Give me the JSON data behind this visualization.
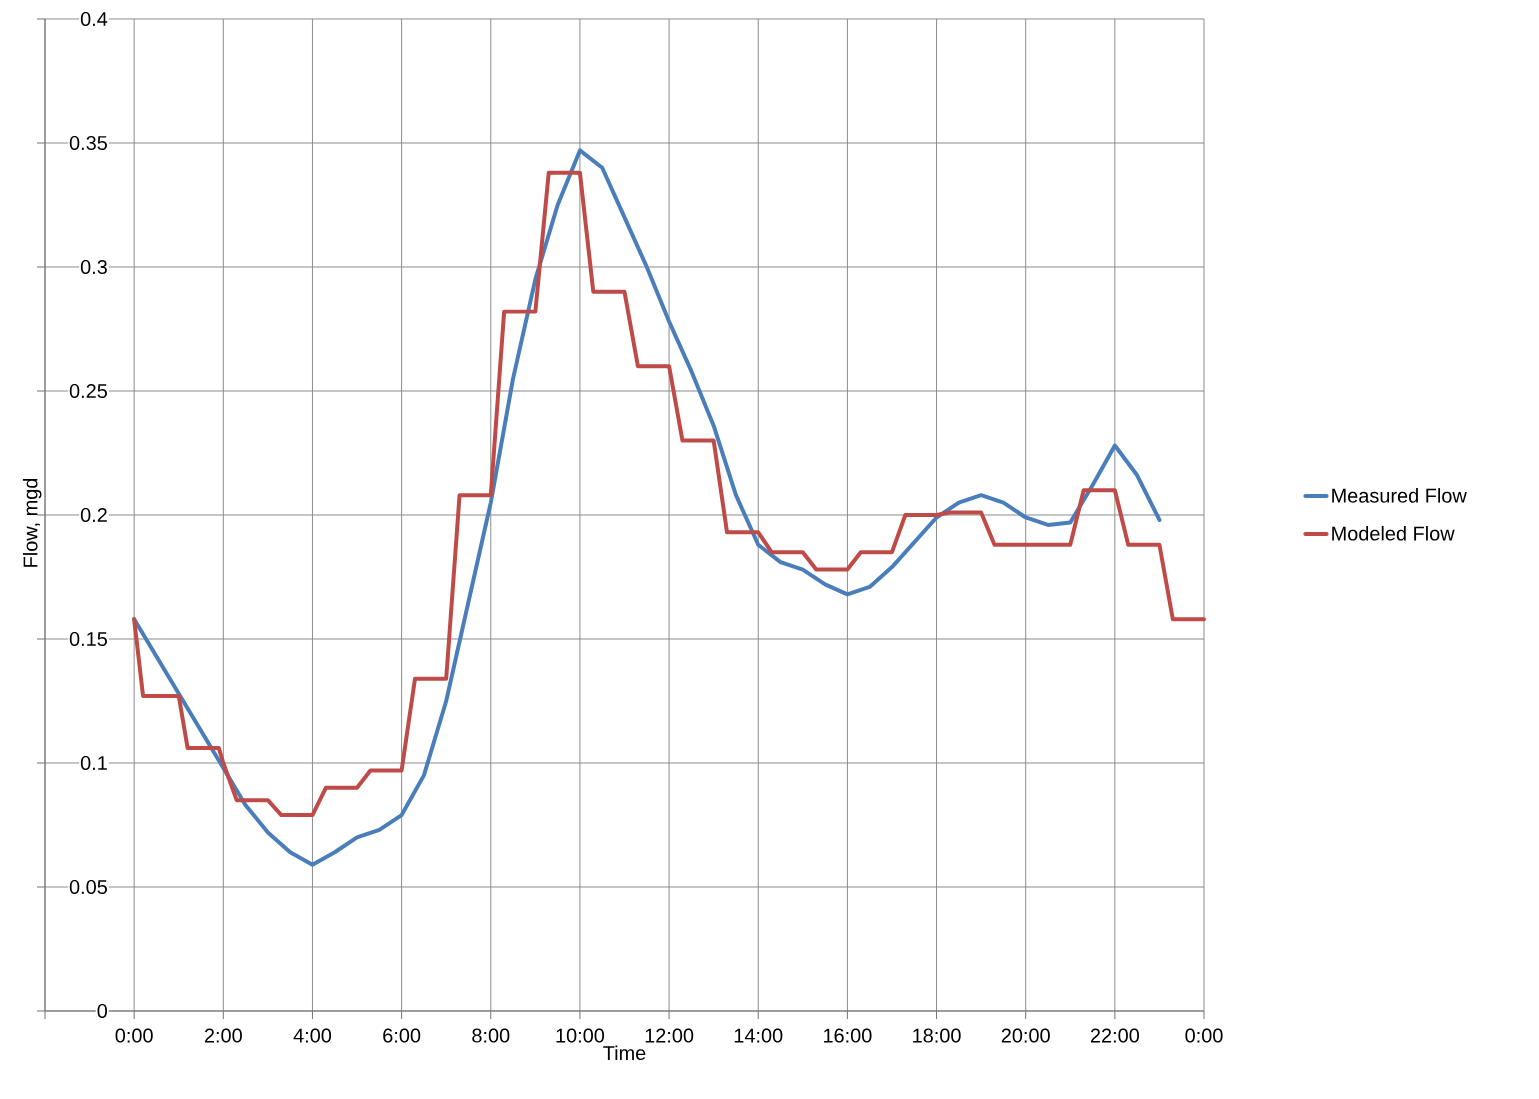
{
  "chart_data": {
    "type": "line",
    "xlabel": "Time",
    "ylabel": "Flow, mgd",
    "xlim": [
      -2,
      24
    ],
    "ylim": [
      0,
      0.4
    ],
    "xticks": [
      {
        "value": -2,
        "label": null
      },
      {
        "value": 0,
        "label": "0:00"
      },
      {
        "value": 2,
        "label": "2:00"
      },
      {
        "value": 4,
        "label": "4:00"
      },
      {
        "value": 6,
        "label": "6:00"
      },
      {
        "value": 8,
        "label": "8:00"
      },
      {
        "value": 10,
        "label": "10:00"
      },
      {
        "value": 12,
        "label": "12:00"
      },
      {
        "value": 14,
        "label": "14:00"
      },
      {
        "value": 16,
        "label": "16:00"
      },
      {
        "value": 18,
        "label": "18:00"
      },
      {
        "value": 20,
        "label": "20:00"
      },
      {
        "value": 22,
        "label": "22:00"
      },
      {
        "value": 24,
        "label": "0:00"
      }
    ],
    "yticks": [
      0,
      0.05,
      0.1,
      0.15,
      0.2,
      0.25,
      0.3,
      0.35,
      0.4
    ],
    "grid": true,
    "legend": "right",
    "marker": "none",
    "line_style": "solid",
    "series": [
      {
        "name": "Measured Flow",
        "color": "#4a7ebb",
        "x": [
          0,
          0.5,
          1,
          1.5,
          2,
          2.5,
          3,
          3.5,
          4,
          4.5,
          5,
          5.5,
          6,
          6.5,
          7,
          7.5,
          8,
          8.5,
          9,
          9.5,
          10,
          10.5,
          11,
          11.5,
          12,
          12.5,
          13,
          13.5,
          14,
          14.5,
          15,
          15.5,
          16,
          16.5,
          17,
          17.5,
          18,
          18.5,
          19,
          19.5,
          20,
          20.5,
          21,
          21.5,
          22,
          22.5,
          23
        ],
        "values": [
          0.158,
          0.143,
          0.128,
          0.113,
          0.098,
          0.083,
          0.072,
          0.064,
          0.059,
          0.064,
          0.07,
          0.073,
          0.079,
          0.095,
          0.125,
          0.165,
          0.205,
          0.255,
          0.295,
          0.325,
          0.347,
          0.34,
          0.32,
          0.3,
          0.278,
          0.258,
          0.236,
          0.208,
          0.188,
          0.181,
          0.178,
          0.172,
          0.168,
          0.171,
          0.179,
          0.189,
          0.199,
          0.205,
          0.208,
          0.205,
          0.199,
          0.196,
          0.197,
          0.212,
          0.228,
          0.216,
          0.198
        ]
      },
      {
        "name": "Modeled Flow",
        "color": "#be4b48",
        "x": [
          0,
          0.2,
          1,
          1.2,
          1.9,
          2,
          2.3,
          3,
          3.3,
          4,
          4.3,
          5,
          5.3,
          6,
          6.3,
          7,
          7.3,
          8,
          8.3,
          9,
          9.3,
          10,
          10.3,
          11,
          11.3,
          12,
          12.3,
          13,
          13.3,
          14,
          14.3,
          15,
          15.3,
          16,
          16.3,
          17,
          17.3,
          18,
          18.3,
          19,
          19.3,
          20,
          21,
          21.3,
          22,
          22.3,
          23,
          23.3,
          24
        ],
        "values": [
          0.158,
          0.127,
          0.127,
          0.106,
          0.106,
          0.1,
          0.085,
          0.085,
          0.079,
          0.079,
          0.09,
          0.09,
          0.097,
          0.097,
          0.134,
          0.134,
          0.208,
          0.208,
          0.282,
          0.282,
          0.338,
          0.338,
          0.29,
          0.29,
          0.26,
          0.26,
          0.23,
          0.23,
          0.193,
          0.193,
          0.185,
          0.185,
          0.178,
          0.178,
          0.185,
          0.185,
          0.2,
          0.2,
          0.201,
          0.201,
          0.188,
          0.188,
          0.188,
          0.21,
          0.21,
          0.188,
          0.188,
          0.158,
          0.158
        ]
      }
    ]
  }
}
